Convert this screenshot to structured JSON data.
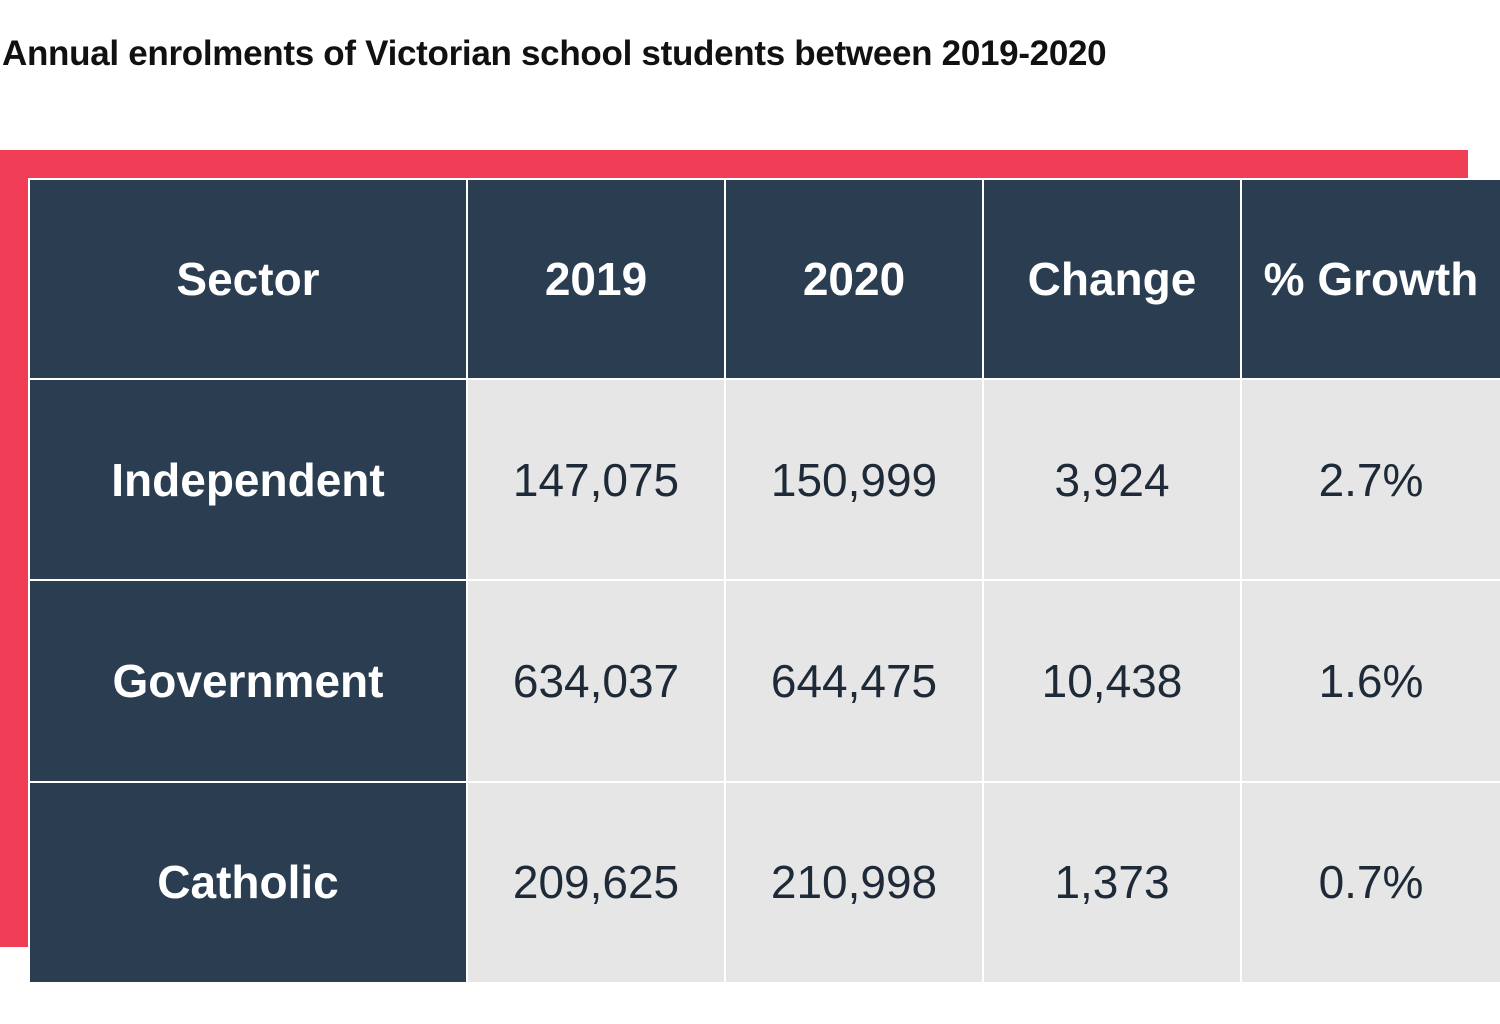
{
  "colors": {
    "header_bg": "#2b3e51",
    "cell_bg": "#e6e6e6",
    "accent": "#ef3e55",
    "header_text": "#ffffff",
    "cell_text": "#1e2a38"
  },
  "chart_data": {
    "type": "table",
    "title": "Annual enrolments of Victorian school students between 2019-2020",
    "columns": [
      "Sector",
      "2019",
      "2020",
      "Change",
      "% Growth"
    ],
    "rows": [
      [
        "Independent",
        "147,075",
        "150,999",
        "3,924",
        "2.7%"
      ],
      [
        "Government",
        "634,037",
        "644,475",
        "10,438",
        "1.6%"
      ],
      [
        "Catholic",
        "209,625",
        "210,998",
        "1,373",
        "0.7%"
      ]
    ]
  }
}
